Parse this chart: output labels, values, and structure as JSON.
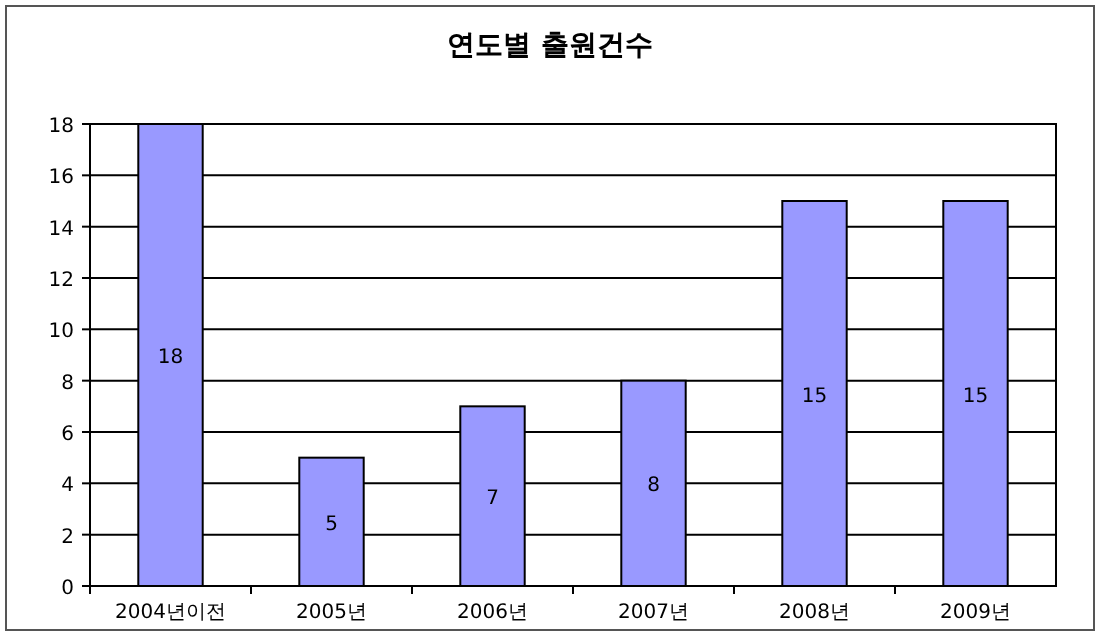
{
  "chart_data": {
    "type": "bar",
    "title": "연도별 출원건수",
    "categories": [
      "2004년이전",
      "2005년",
      "2006년",
      "2007년",
      "2008년",
      "2009년"
    ],
    "values": [
      18,
      5,
      7,
      8,
      15,
      15
    ],
    "color": "#9999ff",
    "ylim": [
      0,
      18
    ],
    "yticks": [
      0,
      2,
      4,
      6,
      8,
      10,
      12,
      14,
      16,
      18
    ],
    "grid": "y",
    "data_labels": true
  }
}
